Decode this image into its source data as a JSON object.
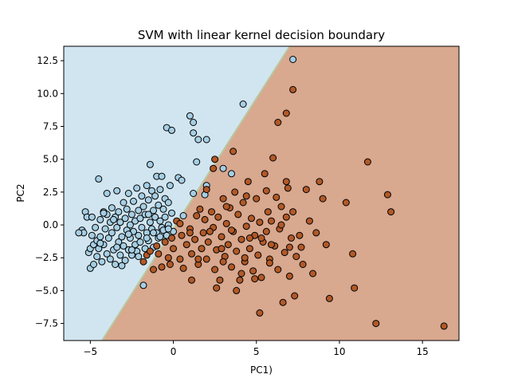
{
  "chart_data": {
    "type": "scatter",
    "title": "SVM with linear kernel decision boundary",
    "xlabel": "PC1)",
    "ylabel": "PC2",
    "xlim": [
      -6.6,
      17.2
    ],
    "ylim": [
      -8.8,
      13.6
    ],
    "xticks": [
      -5,
      0,
      5,
      10,
      15
    ],
    "yticks": [
      -7.5,
      -5.0,
      -2.5,
      0.0,
      2.5,
      5.0,
      7.5,
      10.0,
      12.5
    ],
    "xtick_labels": [
      "−5",
      "0",
      "5",
      "10",
      "15"
    ],
    "ytick_labels": [
      "−7.5",
      "−5.0",
      "−2.5",
      "0.0",
      "2.5",
      "5.0",
      "7.5",
      "10.0",
      "12.5"
    ],
    "grid": false,
    "legend": "none",
    "decision_boundary": {
      "points": [
        [
          -4.3,
          -8.8
        ],
        [
          7.0,
          13.6
        ]
      ],
      "region_colors": {
        "class_0": "#d1e5f0",
        "class_1": "#d8a88f",
        "boundary": "#b8c9a0"
      }
    },
    "colors": {
      "class_0": "#a6cee3",
      "class_1": "#b15928",
      "edge": "#000000"
    },
    "series": [
      {
        "values": [
          [
            -5.5,
            -0.4
          ],
          [
            -5.4,
            -0.6
          ],
          [
            -5.3,
            1.0
          ],
          [
            -5.2,
            0.6
          ],
          [
            -5.1,
            -2.1
          ],
          [
            -5.0,
            -3.3
          ],
          [
            -5.0,
            -1.8
          ],
          [
            -4.9,
            -0.8
          ],
          [
            -4.9,
            0.6
          ],
          [
            -4.8,
            -1.5
          ],
          [
            -4.8,
            -3.0
          ],
          [
            -4.7,
            -0.2
          ],
          [
            -4.6,
            -1.2
          ],
          [
            -4.6,
            -2.4
          ],
          [
            -4.5,
            3.5
          ],
          [
            -4.5,
            -1.8
          ],
          [
            -4.4,
            0.4
          ],
          [
            -4.4,
            -0.9
          ],
          [
            -4.3,
            -2.8
          ],
          [
            -4.2,
            1.0
          ],
          [
            -4.2,
            -1.5
          ],
          [
            -4.1,
            -0.3
          ],
          [
            -4.0,
            2.4
          ],
          [
            -4.0,
            -2.2
          ],
          [
            -4.0,
            0.8
          ],
          [
            -3.9,
            -1.0
          ],
          [
            -3.8,
            0.2
          ],
          [
            -3.8,
            -2.6
          ],
          [
            -3.7,
            1.3
          ],
          [
            -3.7,
            -0.6
          ],
          [
            -3.6,
            -1.9
          ],
          [
            -3.5,
            0.6
          ],
          [
            -3.5,
            -3.0
          ],
          [
            -3.4,
            2.6
          ],
          [
            -3.4,
            -0.2
          ],
          [
            -3.3,
            -1.3
          ],
          [
            -3.3,
            1.0
          ],
          [
            -3.2,
            -2.3
          ],
          [
            -3.2,
            0.2
          ],
          [
            -3.1,
            -0.9
          ],
          [
            -3.0,
            1.7
          ],
          [
            -3.0,
            -1.6
          ],
          [
            -2.9,
            0.5
          ],
          [
            -2.9,
            -2.7
          ],
          [
            -2.8,
            -0.4
          ],
          [
            -2.8,
            1.2
          ],
          [
            -2.7,
            -1.9
          ],
          [
            -2.7,
            2.4
          ],
          [
            -2.6,
            0.0
          ],
          [
            -2.6,
            -1.0
          ],
          [
            -2.5,
            0.8
          ],
          [
            -2.5,
            -2.3
          ],
          [
            -2.4,
            1.8
          ],
          [
            -2.4,
            -0.5
          ],
          [
            -2.3,
            -1.5
          ],
          [
            -2.3,
            0.3
          ],
          [
            -2.2,
            2.8
          ],
          [
            -2.2,
            -2.0
          ],
          [
            -2.1,
            1.1
          ],
          [
            -2.1,
            -0.8
          ],
          [
            -2.0,
            0.5
          ],
          [
            -2.0,
            -1.3
          ],
          [
            -1.9,
            2.2
          ],
          [
            -1.9,
            -0.2
          ],
          [
            -1.8,
            -4.6
          ],
          [
            -1.8,
            1.4
          ],
          [
            -1.7,
            -1.8
          ],
          [
            -1.7,
            0.8
          ],
          [
            -1.6,
            -0.6
          ],
          [
            -1.6,
            3.0
          ],
          [
            -1.5,
            1.9
          ],
          [
            -1.5,
            -1.2
          ],
          [
            -1.4,
            0.2
          ],
          [
            -1.4,
            4.6
          ],
          [
            -1.3,
            2.6
          ],
          [
            -1.3,
            -0.3
          ],
          [
            -1.2,
            1.1
          ],
          [
            -1.2,
            -1.7
          ],
          [
            -1.1,
            0.6
          ],
          [
            -1.1,
            2.2
          ],
          [
            -1.0,
            -0.6
          ],
          [
            -1.0,
            3.7
          ],
          [
            -0.9,
            1.5
          ],
          [
            -0.9,
            -1.0
          ],
          [
            -0.8,
            0.3
          ],
          [
            -0.8,
            2.7
          ],
          [
            -0.7,
            -0.2
          ],
          [
            -0.7,
            3.7
          ],
          [
            -0.6,
            1.2
          ],
          [
            -0.6,
            -0.4
          ],
          [
            -0.5,
            2.0
          ],
          [
            -0.5,
            0.6
          ],
          [
            -0.4,
            7.4
          ],
          [
            -0.4,
            -0.8
          ],
          [
            -0.3,
            1.7
          ],
          [
            -0.3,
            0.0
          ],
          [
            -0.2,
            3.0
          ],
          [
            -0.1,
            7.2
          ],
          [
            -0.1,
            0.9
          ],
          [
            0.0,
            -0.5
          ],
          [
            0.3,
            3.6
          ],
          [
            0.5,
            3.4
          ],
          [
            0.6,
            0.7
          ],
          [
            1.0,
            8.3
          ],
          [
            1.2,
            7.8
          ],
          [
            1.2,
            7.0
          ],
          [
            1.5,
            6.5
          ],
          [
            1.4,
            4.8
          ],
          [
            1.2,
            2.4
          ],
          [
            2.0,
            6.5
          ],
          [
            2.0,
            3.0
          ],
          [
            3.0,
            4.3
          ],
          [
            3.5,
            3.9
          ],
          [
            4.2,
            9.2
          ],
          [
            7.2,
            12.6
          ],
          [
            -5.7,
            -0.6
          ],
          [
            -4.4,
            -1.4
          ],
          [
            -3.6,
            0.4
          ],
          [
            -2.7,
            -0.7
          ],
          [
            -1.2,
            -0.6
          ],
          [
            -0.3,
            -0.3
          ],
          [
            1.9,
            2.3
          ],
          [
            -3.4,
            -1.7
          ],
          [
            -2.5,
            -1.9
          ],
          [
            -1.6,
            -1.0
          ],
          [
            -0.8,
            -0.9
          ],
          [
            -4.2,
            0.9
          ],
          [
            -3.1,
            -3.1
          ],
          [
            -2.1,
            -2.4
          ],
          [
            -1.5,
            0.8
          ]
        ]
      },
      {
        "values": [
          [
            -1.8,
            -2.8
          ],
          [
            -1.6,
            -2.3
          ],
          [
            -1.4,
            -2.0
          ],
          [
            -1.2,
            -3.4
          ],
          [
            -1.0,
            -1.6
          ],
          [
            -0.9,
            -2.2
          ],
          [
            -0.7,
            -3.2
          ],
          [
            -0.5,
            -1.3
          ],
          [
            -0.3,
            -2.5
          ],
          [
            -0.1,
            -1.0
          ],
          [
            0.0,
            -1.8
          ],
          [
            0.2,
            0.3
          ],
          [
            0.4,
            -2.6
          ],
          [
            0.5,
            -0.8
          ],
          [
            0.6,
            -3.3
          ],
          [
            0.8,
            -1.5
          ],
          [
            1.0,
            -0.3
          ],
          [
            1.1,
            -2.2
          ],
          [
            1.3,
            -1.1
          ],
          [
            1.4,
            0.7
          ],
          [
            1.5,
            -3.0
          ],
          [
            1.7,
            -1.8
          ],
          [
            1.8,
            -0.6
          ],
          [
            1.9,
            0.4
          ],
          [
            2.0,
            -2.6
          ],
          [
            2.1,
            -1.3
          ],
          [
            2.3,
            1.0
          ],
          [
            2.4,
            -0.2
          ],
          [
            2.5,
            5.0
          ],
          [
            2.5,
            -3.4
          ],
          [
            2.6,
            -1.9
          ],
          [
            2.7,
            0.6
          ],
          [
            2.8,
            -4.2
          ],
          [
            2.9,
            -0.9
          ],
          [
            3.0,
            2.0
          ],
          [
            3.1,
            -2.4
          ],
          [
            3.2,
            0.1
          ],
          [
            3.3,
            -1.5
          ],
          [
            3.4,
            1.3
          ],
          [
            3.5,
            -3.2
          ],
          [
            3.6,
            -0.5
          ],
          [
            3.7,
            2.5
          ],
          [
            3.8,
            -2.0
          ],
          [
            3.9,
            0.8
          ],
          [
            4.0,
            -4.2
          ],
          [
            4.1,
            -1.1
          ],
          [
            4.2,
            1.7
          ],
          [
            4.3,
            -2.8
          ],
          [
            4.4,
            -0.1
          ],
          [
            4.5,
            3.3
          ],
          [
            4.6,
            -1.8
          ],
          [
            4.7,
            0.5
          ],
          [
            4.8,
            -3.5
          ],
          [
            4.9,
            -0.8
          ],
          [
            5.0,
            2.0
          ],
          [
            5.1,
            -2.3
          ],
          [
            5.2,
            0.2
          ],
          [
            5.3,
            -4.0
          ],
          [
            5.4,
            -1.3
          ],
          [
            5.5,
            3.9
          ],
          [
            5.6,
            -0.5
          ],
          [
            5.7,
            1.0
          ],
          [
            5.8,
            -2.6
          ],
          [
            5.9,
            0.3
          ],
          [
            6.0,
            5.1
          ],
          [
            6.1,
            -1.6
          ],
          [
            6.2,
            2.1
          ],
          [
            6.3,
            -3.4
          ],
          [
            6.4,
            -0.3
          ],
          [
            6.5,
            1.4
          ],
          [
            6.6,
            -5.9
          ],
          [
            6.7,
            -2.1
          ],
          [
            6.8,
            0.6
          ],
          [
            6.9,
            2.8
          ],
          [
            7.0,
            -3.9
          ],
          [
            7.1,
            -1.0
          ],
          [
            7.2,
            1.0
          ],
          [
            7.3,
            -5.4
          ],
          [
            7.4,
            -2.4
          ],
          [
            7.6,
            -0.8
          ],
          [
            7.8,
            -3.0
          ],
          [
            8.0,
            2.7
          ],
          [
            8.2,
            0.3
          ],
          [
            8.4,
            -3.7
          ],
          [
            8.6,
            -0.6
          ],
          [
            8.8,
            3.3
          ],
          [
            9.0,
            2.0
          ],
          [
            9.2,
            -1.5
          ],
          [
            9.4,
            -5.6
          ],
          [
            10.4,
            1.7
          ],
          [
            10.8,
            -2.2
          ],
          [
            10.9,
            -4.8
          ],
          [
            11.7,
            4.8
          ],
          [
            12.2,
            -7.5
          ],
          [
            12.9,
            2.3
          ],
          [
            13.1,
            1.0
          ],
          [
            16.3,
            -7.7
          ],
          [
            5.2,
            -6.7
          ],
          [
            6.3,
            7.8
          ],
          [
            6.8,
            8.5
          ],
          [
            7.2,
            10.3
          ],
          [
            3.6,
            5.6
          ],
          [
            2.4,
            4.3
          ],
          [
            -0.2,
            -3.0
          ],
          [
            1.0,
            -0.6
          ],
          [
            2.2,
            -0.5
          ],
          [
            3.5,
            -0.4
          ],
          [
            4.6,
            -1.0
          ],
          [
            5.9,
            -1.5
          ],
          [
            7.0,
            -1.7
          ],
          [
            3.2,
            1.4
          ],
          [
            4.4,
            2.2
          ],
          [
            5.6,
            2.6
          ],
          [
            6.8,
            3.3
          ],
          [
            1.6,
            1.2
          ],
          [
            2.9,
            -1.8
          ],
          [
            4.1,
            -3.7
          ],
          [
            5.3,
            -1.0
          ],
          [
            6.5,
            0.0
          ],
          [
            2.0,
            2.7
          ],
          [
            1.1,
            -4.2
          ],
          [
            2.6,
            -4.8
          ],
          [
            3.8,
            -5.0
          ],
          [
            4.9,
            -4.1
          ],
          [
            0.4,
            0.1
          ],
          [
            1.5,
            -2.6
          ],
          [
            3.0,
            -2.8
          ],
          [
            4.3,
            -2.5
          ],
          [
            5.8,
            -2.9
          ],
          [
            7.7,
            -1.7
          ]
        ]
      }
    ]
  }
}
